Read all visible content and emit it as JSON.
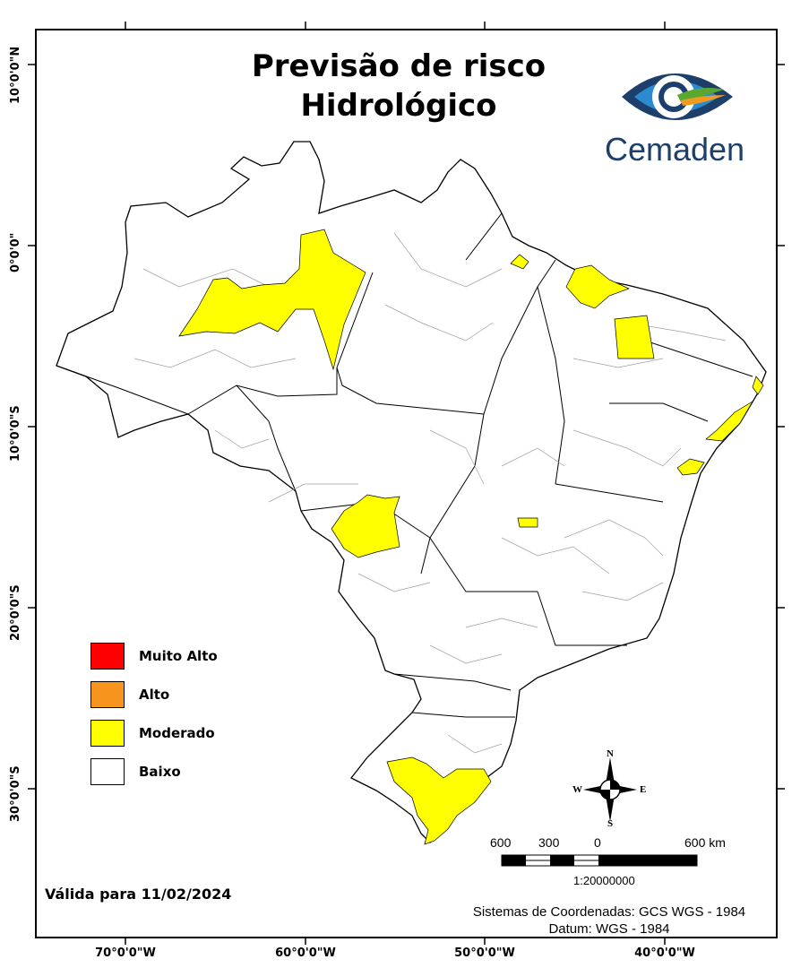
{
  "title": {
    "line1": "Previsão de risco",
    "line2": "Hidrológico"
  },
  "logo": {
    "name": "Cemaden",
    "colors": {
      "dark_blue": "#1d3f6b",
      "light_blue": "#2a8bd0",
      "green": "#5aa832",
      "orange": "#f09a1e"
    }
  },
  "axes": {
    "longitude_labels": [
      "70°0'0\"W",
      "60°0'0\"W",
      "50°0'0\"W",
      "40°0'0\"W"
    ],
    "latitude_labels": [
      "10°0'0\"N",
      "0°0'0\"",
      "10°0'0\"S",
      "20°0'0\"S",
      "30°0'0\"S"
    ]
  },
  "legend": {
    "items": [
      {
        "label": "Muito Alto",
        "color": "#ff0000"
      },
      {
        "label": "Alto",
        "color": "#f7941d"
      },
      {
        "label": "Moderado",
        "color": "#ffff00"
      },
      {
        "label": "Baixo",
        "color": "#ffffff"
      }
    ]
  },
  "validity": "Válida para 11/02/2024",
  "scale_bar": {
    "ticks": [
      "600",
      "300",
      "0",
      "600 km"
    ],
    "ratio": "1:20000000"
  },
  "compass": {
    "n": "N",
    "s": "S",
    "e": "E",
    "w": "W"
  },
  "footer": {
    "coord_system": "Sistemas de Coordenadas: GCS WGS - 1984",
    "datum": "Datum: WGS - 1984"
  },
  "risk_colors": {
    "moderado": "#ffff00",
    "baixo": "#ffffff",
    "outline": "#000000",
    "inner_border": "#a0a0a0"
  }
}
